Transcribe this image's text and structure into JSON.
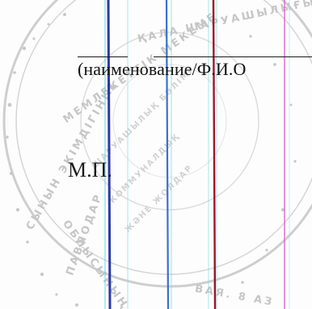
{
  "signature_block": {
    "caption": "(наименование/Ф.И.О",
    "stamp_place_label": "М.П."
  },
  "stamp": {
    "description_ring_text": "СЫНЫН ЭКИМДИГИНИН ТАУ... МЕМЛЕКЕТТИК МЕКЕМЕ... ШАРУАШЫЛЫГЫ БЕЛЕМИ...",
    "ink_color": "#8a8a8a"
  },
  "colors": {
    "ink": "#111111",
    "stamp_ink": "#9a9a9a",
    "line_blue": "#2a3aa8",
    "line_blue_light": "#3b6fd0",
    "line_red": "#a01428",
    "line_magenta": "#e06cc8",
    "line_cyan": "#64d8e0"
  }
}
